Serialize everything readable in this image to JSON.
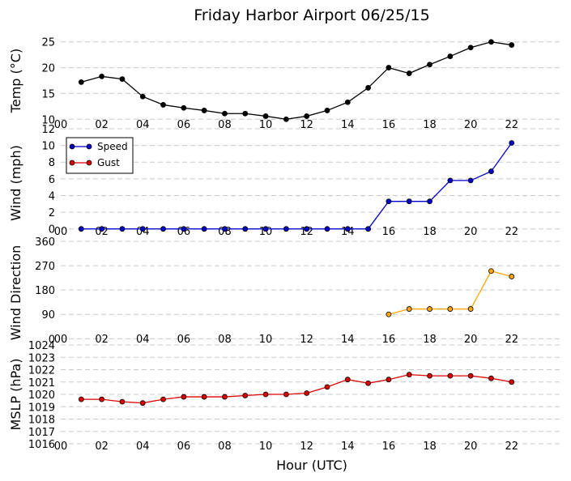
{
  "title": "Friday Harbor Airport 06/25/15",
  "xlabel": "Hour (UTC)",
  "chart_data": [
    {
      "type": "line",
      "ylabel": "Temp (°C)",
      "ylim": [
        8,
        27
      ],
      "yticks": [
        10,
        15,
        20,
        25
      ],
      "xlim": [
        0,
        24.5
      ],
      "xticks": [
        "00",
        "02",
        "04",
        "06",
        "08",
        "10",
        "12",
        "14",
        "16",
        "18",
        "20",
        "22"
      ],
      "grid": true,
      "series": [
        {
          "color": "#000000",
          "x": [
            1,
            2,
            3,
            4,
            5,
            6,
            7,
            8,
            9,
            10,
            11,
            12,
            13,
            14,
            15,
            16,
            17,
            18,
            19,
            20,
            21,
            22
          ],
          "y": [
            17.2,
            18.3,
            17.8,
            14.4,
            12.8,
            12.2,
            11.7,
            11.1,
            11.1,
            10.6,
            10.0,
            10.6,
            11.7,
            13.3,
            16.1,
            20.0,
            18.9,
            20.6,
            22.2,
            23.9,
            25.0,
            24.4
          ]
        }
      ]
    },
    {
      "type": "line",
      "ylabel": "Wind (mph)",
      "ylim": [
        -1,
        12
      ],
      "yticks": [
        0,
        2,
        4,
        6,
        8,
        10,
        12
      ],
      "xlim": [
        0,
        24.5
      ],
      "xticks": [
        "00",
        "02",
        "04",
        "06",
        "08",
        "10",
        "12",
        "14",
        "16",
        "18",
        "20",
        "22"
      ],
      "grid": true,
      "legend_position": "upper-left",
      "series": [
        {
          "name": "Speed",
          "color": "#0000cc",
          "x": [
            1,
            2,
            3,
            4,
            5,
            6,
            7,
            8,
            9,
            10,
            11,
            12,
            13,
            14,
            15,
            16,
            17,
            18,
            19,
            20,
            21,
            22
          ],
          "y": [
            0,
            0,
            0,
            0,
            0,
            0,
            0,
            0,
            0,
            0,
            0,
            0,
            0,
            0,
            0,
            3.3,
            3.3,
            3.3,
            5.8,
            5.8,
            6.9,
            10.3
          ]
        },
        {
          "name": "Gust",
          "color": "#dd0000",
          "x": [],
          "y": []
        }
      ]
    },
    {
      "type": "line",
      "ylabel": "Wind Direction",
      "ylim": [
        -20,
        360
      ],
      "yticks": [
        0,
        90,
        180,
        270,
        360
      ],
      "xlim": [
        0,
        24.5
      ],
      "xticks": [
        "00",
        "02",
        "04",
        "06",
        "08",
        "10",
        "12",
        "14",
        "16",
        "18",
        "20",
        "22"
      ],
      "grid": true,
      "series": [
        {
          "color": "#ffa500",
          "marker_fill": "#ffa500",
          "x": [
            16,
            17,
            18,
            19,
            20,
            21,
            22
          ],
          "y": [
            90,
            110,
            110,
            110,
            110,
            250,
            230
          ]
        }
      ]
    },
    {
      "type": "line",
      "ylabel": "MSLP (hPa)",
      "ylim": [
        1016,
        1024
      ],
      "yticks": [
        1016,
        1017,
        1018,
        1019,
        1020,
        1021,
        1022,
        1023,
        1024
      ],
      "xlim": [
        0,
        24.5
      ],
      "xticks": [
        "00",
        "02",
        "04",
        "06",
        "08",
        "10",
        "12",
        "14",
        "16",
        "18",
        "20",
        "22"
      ],
      "grid": true,
      "series": [
        {
          "color": "#dd0000",
          "x": [
            1,
            2,
            3,
            4,
            5,
            6,
            7,
            8,
            9,
            10,
            11,
            12,
            13,
            14,
            15,
            16,
            17,
            18,
            19,
            20,
            21,
            22
          ],
          "y": [
            1019.6,
            1019.6,
            1019.4,
            1019.3,
            1019.6,
            1019.8,
            1019.8,
            1019.8,
            1019.9,
            1020.0,
            1020.0,
            1020.1,
            1020.6,
            1021.2,
            1020.9,
            1021.2,
            1021.6,
            1021.5,
            1021.5,
            1021.5,
            1021.3,
            1021.0
          ]
        }
      ]
    }
  ]
}
